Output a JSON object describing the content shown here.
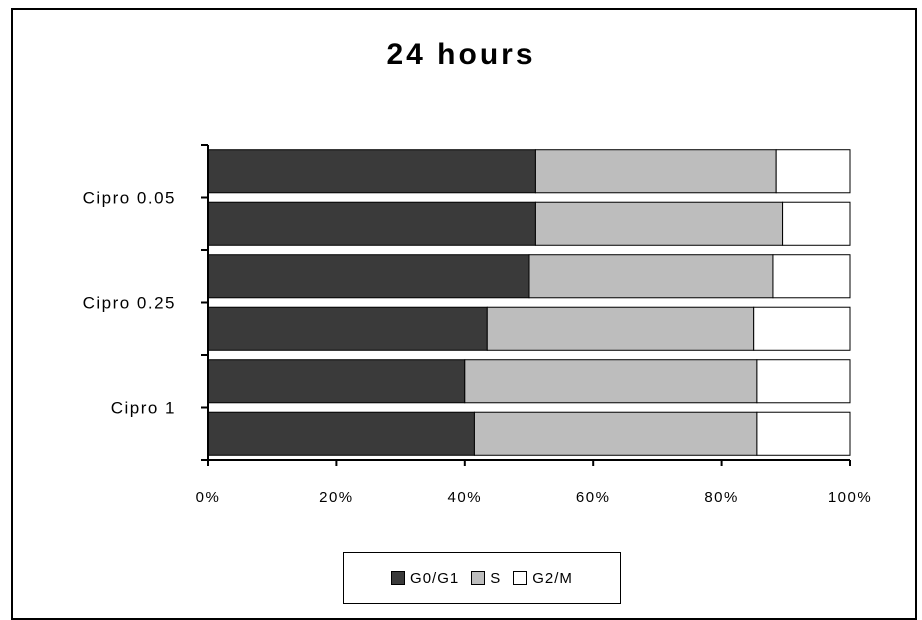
{
  "chart_data": {
    "type": "bar",
    "orientation": "horizontal",
    "stacked": true,
    "percent": true,
    "title": "24 hours",
    "xlabel": "",
    "ylabel": "",
    "xlim": [
      0,
      100
    ],
    "x_ticks": [
      "0%",
      "20%",
      "40%",
      "60%",
      "80%",
      "100%"
    ],
    "category_labels": [
      "Cipro 0.05",
      "Cipro 0.25",
      "Cipro 1"
    ],
    "bars_per_category": 2,
    "series": [
      {
        "name": "G0/G1",
        "color": "#3a3a3a",
        "values": [
          51,
          51,
          50,
          43.5,
          40,
          41.5
        ]
      },
      {
        "name": "S",
        "color": "#bdbdbd",
        "values": [
          37.5,
          38.5,
          38,
          41.5,
          45.5,
          44
        ]
      },
      {
        "name": "G2/M",
        "color": "#ffffff",
        "values": [
          11.5,
          10.5,
          12,
          15,
          14.5,
          14.5
        ]
      }
    ],
    "grid": false,
    "legend_position": "bottom"
  }
}
